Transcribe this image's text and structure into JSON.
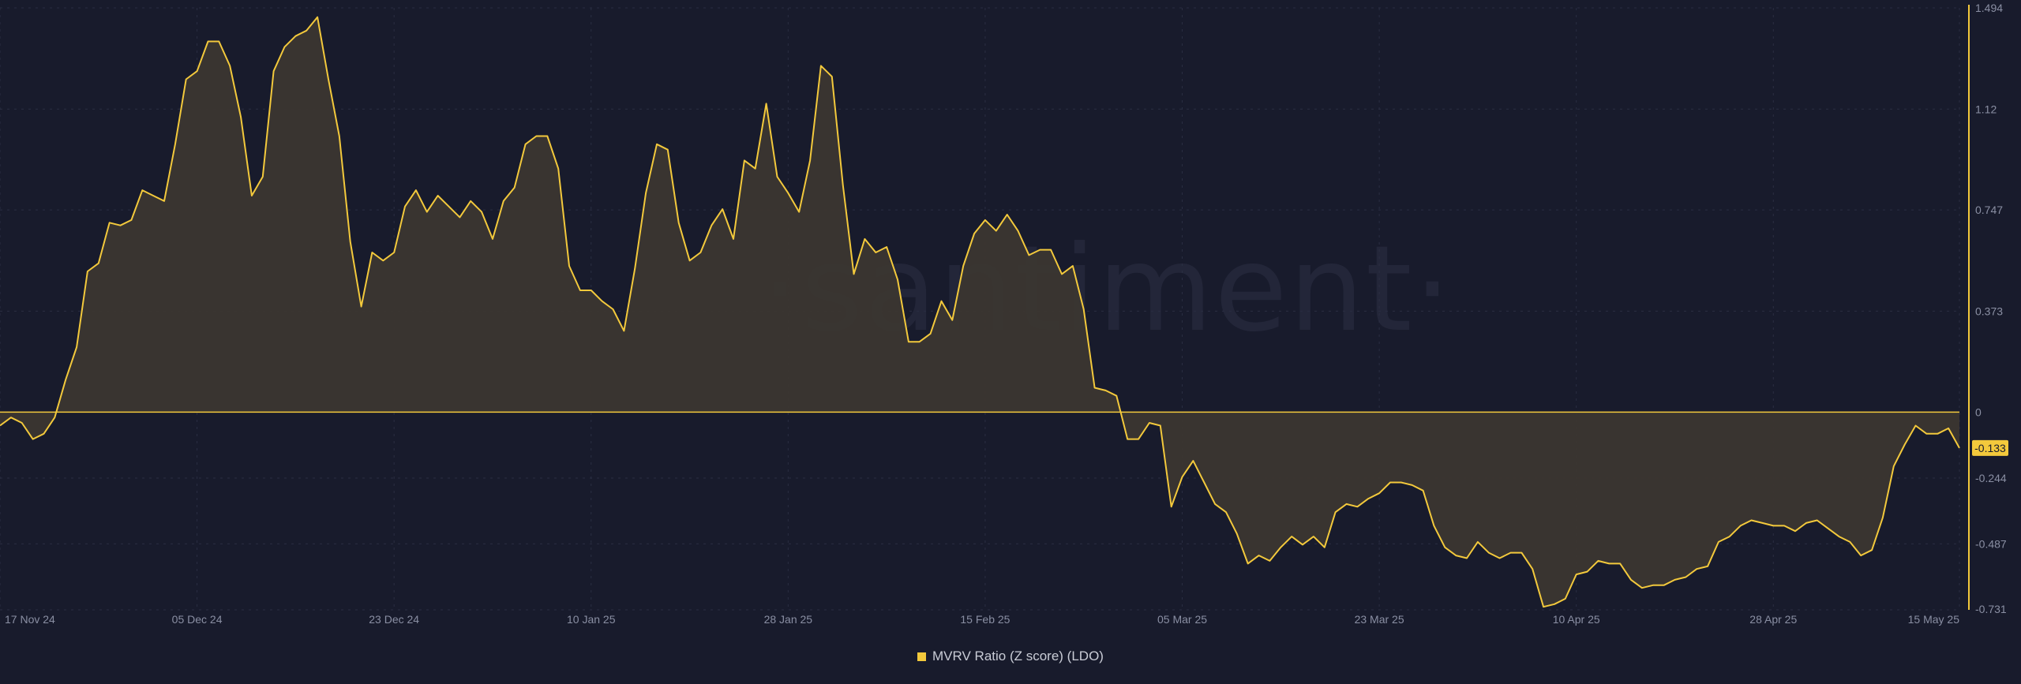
{
  "watermark": "·santiment·",
  "colors": {
    "background": "#181b2c",
    "line": "#f3c93c",
    "fill": "#3b3630",
    "zero_line": "#f3c93c",
    "grid": "#2a2e42",
    "axis_text": "#8a8fa3",
    "current_badge_bg": "#f3c93c",
    "current_badge_text": "#181b2c"
  },
  "legend": {
    "label": "MVRV Ratio (Z score) (LDO)"
  },
  "current_value_label": "-0.133",
  "chart_data": {
    "type": "area",
    "title": "",
    "xlabel": "",
    "ylabel": "",
    "ylim": [
      -0.731,
      1.494
    ],
    "y_ticks": [
      "1.494",
      "1.12",
      "0.747",
      "0.373",
      "0",
      "-0.244",
      "-0.487",
      "-0.731"
    ],
    "x_ticks": [
      "17 Nov 24",
      "05 Dec 24",
      "23 Dec 24",
      "10 Jan 25",
      "28 Jan 25",
      "15 Feb 25",
      "05 Mar 25",
      "23 Mar 25",
      "10 Apr 25",
      "28 Apr 25",
      "15 May 25"
    ],
    "x_start": "2024-11-17",
    "x_end": "2025-05-15",
    "grid": true,
    "legend_position": "bottom-center",
    "series": [
      {
        "name": "MVRV Ratio (Z score) (LDO)",
        "x": [
          "2024-11-17",
          "2024-11-18",
          "2024-11-19",
          "2024-11-20",
          "2024-11-21",
          "2024-11-22",
          "2024-11-23",
          "2024-11-24",
          "2024-11-25",
          "2024-11-26",
          "2024-11-27",
          "2024-11-28",
          "2024-11-29",
          "2024-11-30",
          "2024-12-01",
          "2024-12-02",
          "2024-12-03",
          "2024-12-04",
          "2024-12-05",
          "2024-12-06",
          "2024-12-07",
          "2024-12-08",
          "2024-12-09",
          "2024-12-10",
          "2024-12-11",
          "2024-12-12",
          "2024-12-13",
          "2024-12-14",
          "2024-12-15",
          "2024-12-16",
          "2024-12-17",
          "2024-12-18",
          "2024-12-19",
          "2024-12-20",
          "2024-12-21",
          "2024-12-22",
          "2024-12-23",
          "2024-12-24",
          "2024-12-25",
          "2024-12-26",
          "2024-12-27",
          "2024-12-28",
          "2024-12-29",
          "2024-12-30",
          "2024-12-31",
          "2025-01-01",
          "2025-01-02",
          "2025-01-03",
          "2025-01-04",
          "2025-01-05",
          "2025-01-06",
          "2025-01-07",
          "2025-01-08",
          "2025-01-09",
          "2025-01-10",
          "2025-01-11",
          "2025-01-12",
          "2025-01-13",
          "2025-01-14",
          "2025-01-15",
          "2025-01-16",
          "2025-01-17",
          "2025-01-18",
          "2025-01-19",
          "2025-01-20",
          "2025-01-21",
          "2025-01-22",
          "2025-01-23",
          "2025-01-24",
          "2025-01-25",
          "2025-01-26",
          "2025-01-27",
          "2025-01-28",
          "2025-01-29",
          "2025-01-30",
          "2025-01-31",
          "2025-02-01",
          "2025-02-02",
          "2025-02-03",
          "2025-02-04",
          "2025-02-05",
          "2025-02-06",
          "2025-02-07",
          "2025-02-08",
          "2025-02-09",
          "2025-02-10",
          "2025-02-11",
          "2025-02-12",
          "2025-02-13",
          "2025-02-14",
          "2025-02-15",
          "2025-02-16",
          "2025-02-17",
          "2025-02-18",
          "2025-02-19",
          "2025-02-20",
          "2025-02-21",
          "2025-02-22",
          "2025-02-23",
          "2025-02-24",
          "2025-02-25",
          "2025-02-26",
          "2025-02-27",
          "2025-02-28",
          "2025-03-01",
          "2025-03-02",
          "2025-03-03",
          "2025-03-04",
          "2025-03-05",
          "2025-03-06",
          "2025-03-07",
          "2025-03-08",
          "2025-03-09",
          "2025-03-10",
          "2025-03-11",
          "2025-03-12",
          "2025-03-13",
          "2025-03-14",
          "2025-03-15",
          "2025-03-16",
          "2025-03-17",
          "2025-03-18",
          "2025-03-19",
          "2025-03-20",
          "2025-03-21",
          "2025-03-22",
          "2025-03-23",
          "2025-03-24",
          "2025-03-25",
          "2025-03-26",
          "2025-03-27",
          "2025-03-28",
          "2025-03-29",
          "2025-03-30",
          "2025-03-31",
          "2025-04-01",
          "2025-04-02",
          "2025-04-03",
          "2025-04-04",
          "2025-04-05",
          "2025-04-06",
          "2025-04-07",
          "2025-04-08",
          "2025-04-09",
          "2025-04-10",
          "2025-04-11",
          "2025-04-12",
          "2025-04-13",
          "2025-04-14",
          "2025-04-15",
          "2025-04-16",
          "2025-04-17",
          "2025-04-18",
          "2025-04-19",
          "2025-04-20",
          "2025-04-21",
          "2025-04-22",
          "2025-04-23",
          "2025-04-24",
          "2025-04-25",
          "2025-04-26",
          "2025-04-27",
          "2025-04-28",
          "2025-04-29",
          "2025-04-30",
          "2025-05-01",
          "2025-05-02",
          "2025-05-03",
          "2025-05-04",
          "2025-05-05",
          "2025-05-06",
          "2025-05-07",
          "2025-05-08",
          "2025-05-09",
          "2025-05-10",
          "2025-05-11",
          "2025-05-12",
          "2025-05-13",
          "2025-05-14",
          "2025-05-15"
        ],
        "values": [
          -0.05,
          -0.02,
          -0.04,
          -0.1,
          -0.08,
          -0.02,
          0.12,
          0.24,
          0.52,
          0.55,
          0.7,
          0.69,
          0.71,
          0.82,
          0.8,
          0.78,
          0.99,
          1.23,
          1.26,
          1.37,
          1.37,
          1.28,
          1.09,
          0.8,
          0.87,
          1.26,
          1.35,
          1.39,
          1.41,
          1.46,
          1.23,
          1.02,
          0.63,
          0.39,
          0.59,
          0.56,
          0.59,
          0.76,
          0.82,
          0.74,
          0.8,
          0.76,
          0.72,
          0.78,
          0.74,
          0.64,
          0.78,
          0.83,
          0.99,
          1.02,
          1.02,
          0.9,
          0.54,
          0.45,
          0.45,
          0.41,
          0.38,
          0.3,
          0.53,
          0.81,
          0.99,
          0.97,
          0.7,
          0.56,
          0.59,
          0.69,
          0.75,
          0.64,
          0.93,
          0.9,
          1.14,
          0.87,
          0.81,
          0.74,
          0.93,
          1.28,
          1.24,
          0.84,
          0.51,
          0.64,
          0.59,
          0.61,
          0.49,
          0.26,
          0.26,
          0.29,
          0.41,
          0.34,
          0.54,
          0.66,
          0.71,
          0.67,
          0.73,
          0.67,
          0.58,
          0.6,
          0.6,
          0.51,
          0.54,
          0.38,
          0.09,
          0.08,
          0.06,
          -0.1,
          -0.1,
          -0.04,
          -0.05,
          -0.35,
          -0.24,
          -0.18,
          -0.26,
          -0.34,
          -0.37,
          -0.45,
          -0.56,
          -0.53,
          -0.55,
          -0.5,
          -0.46,
          -0.49,
          -0.46,
          -0.5,
          -0.37,
          -0.34,
          -0.35,
          -0.32,
          -0.3,
          -0.26,
          -0.26,
          -0.27,
          -0.29,
          -0.42,
          -0.5,
          -0.53,
          -0.54,
          -0.48,
          -0.52,
          -0.54,
          -0.52,
          -0.52,
          -0.58,
          -0.72,
          -0.71,
          -0.69,
          -0.6,
          -0.59,
          -0.55,
          -0.56,
          -0.56,
          -0.62,
          -0.65,
          -0.64,
          -0.64,
          -0.62,
          -0.61,
          -0.58,
          -0.57,
          -0.48,
          -0.46,
          -0.42,
          -0.4,
          -0.41,
          -0.42,
          -0.42,
          -0.44,
          -0.41,
          -0.4,
          -0.43,
          -0.46,
          -0.48,
          -0.53,
          -0.51,
          -0.39,
          -0.2,
          -0.12,
          -0.05,
          -0.08,
          -0.08,
          -0.06,
          -0.133
        ]
      }
    ]
  }
}
